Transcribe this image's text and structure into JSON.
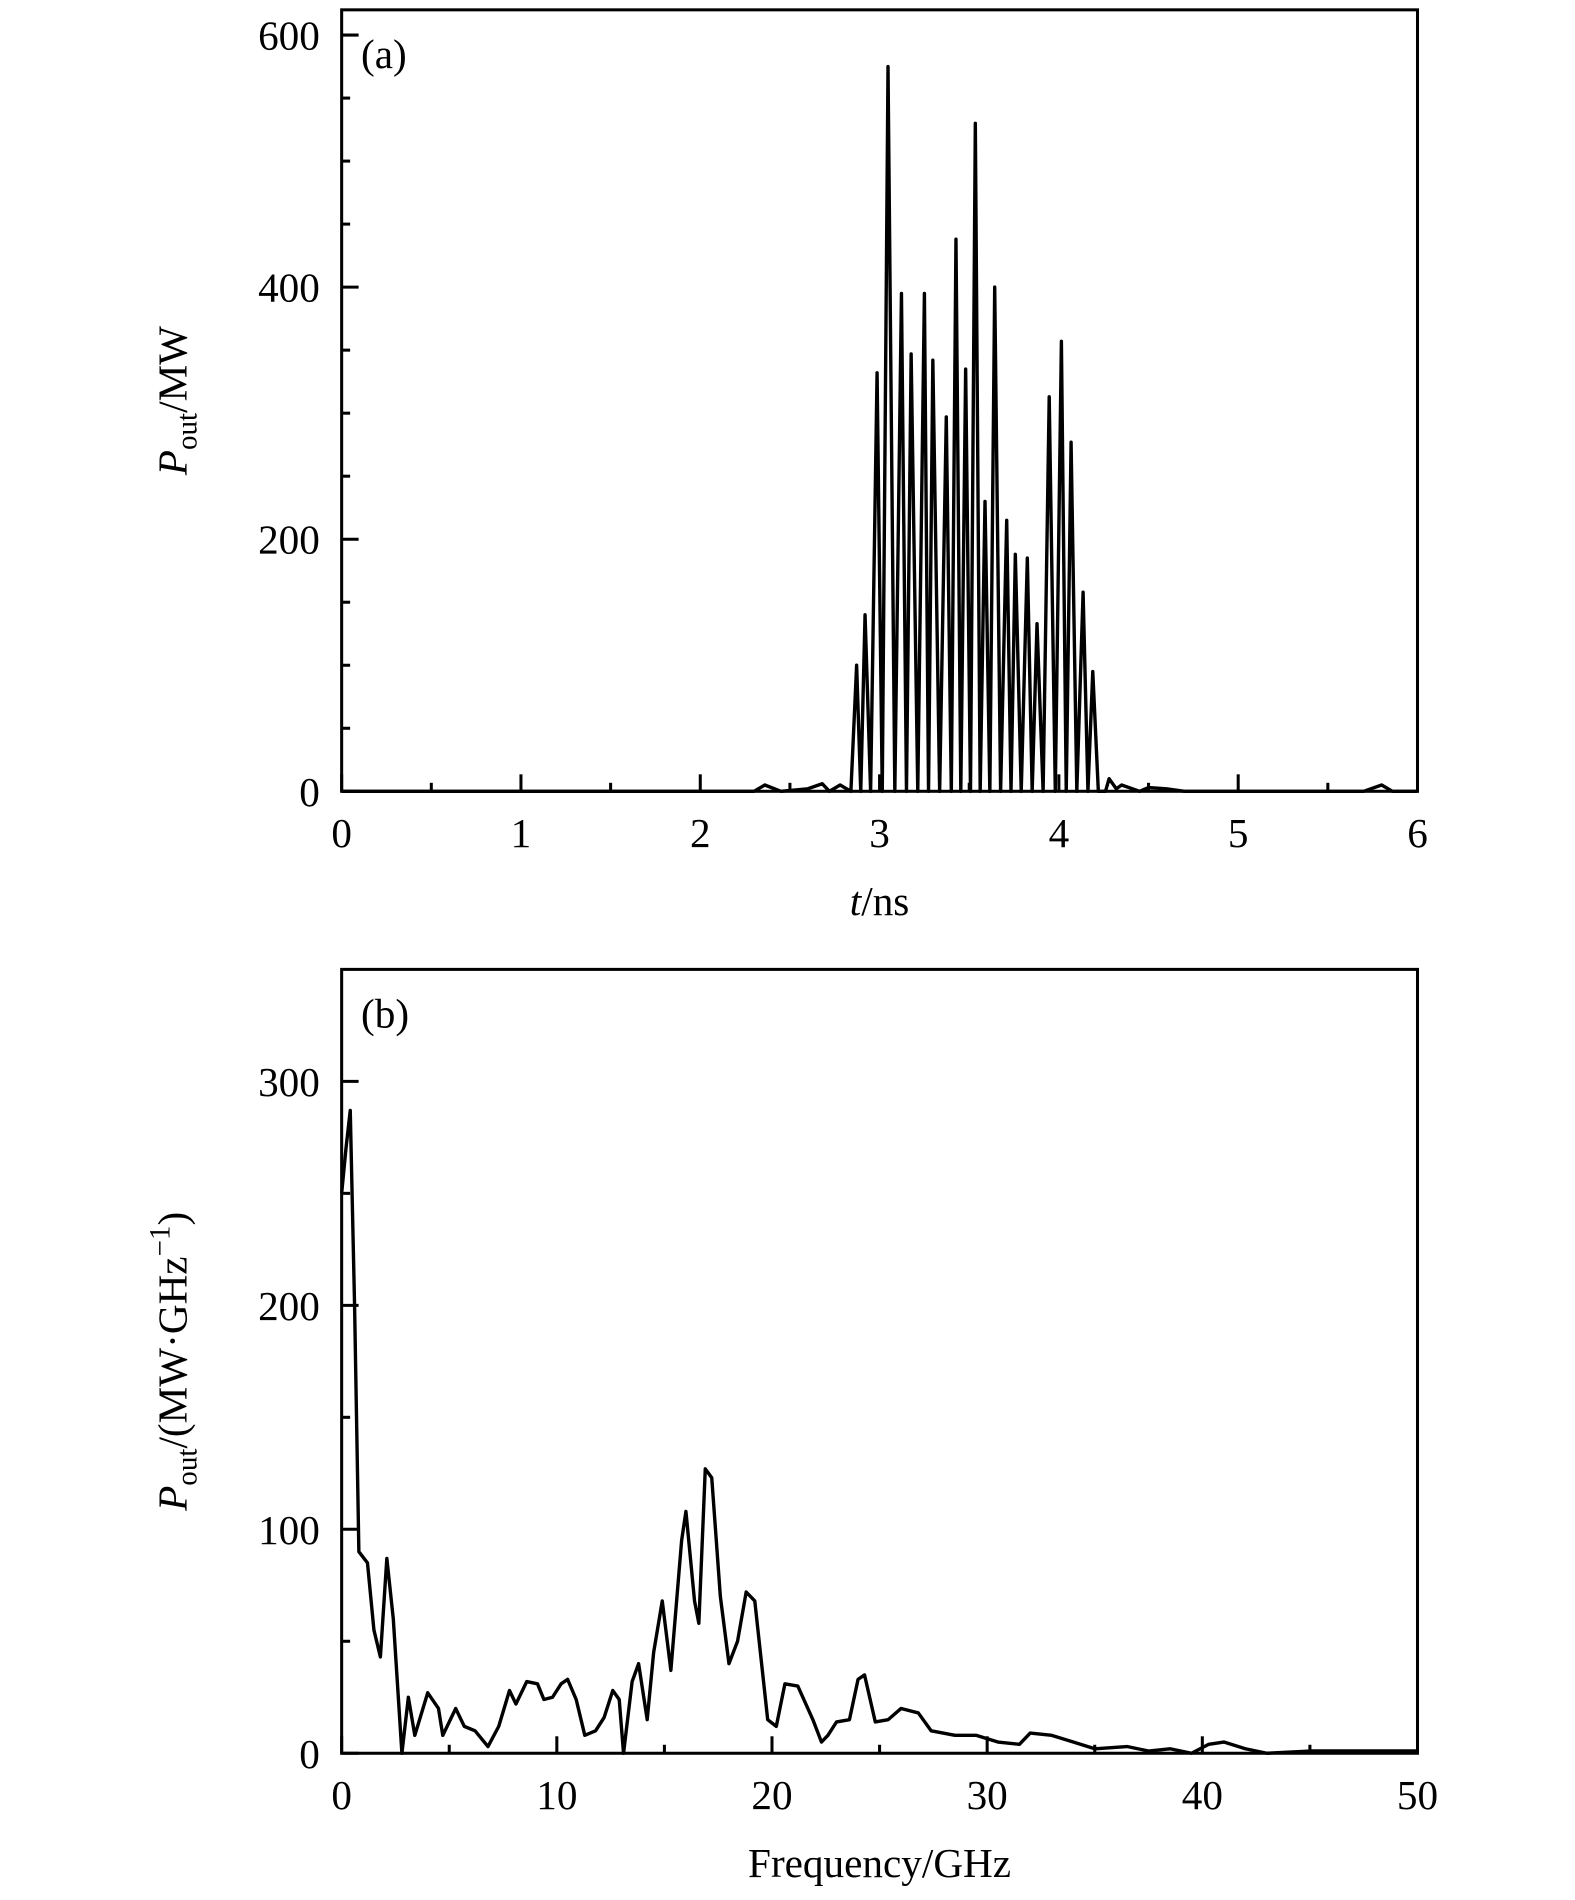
{
  "chart_data": [
    {
      "type": "line",
      "annotation": "(a)",
      "ylabel": {
        "main": "P",
        "sub": "out",
        "rest": "/MW"
      },
      "xlabel": {
        "main": "t",
        "rest": "/ns"
      },
      "xlim": [
        0,
        6
      ],
      "ylim": [
        0,
        620
      ],
      "xticks": [
        0,
        1,
        2,
        3,
        4,
        5,
        6
      ],
      "yticks": [
        0,
        200,
        400,
        600
      ],
      "xminorticks": [
        0.5,
        1.5,
        2.5,
        3.5,
        4.5,
        5.5
      ],
      "yminorticks": [
        50,
        100,
        150,
        250,
        300,
        350,
        450,
        500,
        550
      ],
      "series": [
        {
          "color": "#000000",
          "x": [
            0,
            2.2,
            2.3,
            2.36,
            2.45,
            2.6,
            2.68,
            2.72,
            2.78,
            2.84,
            2.872,
            2.895,
            2.919,
            2.95,
            2.986,
            3.015,
            3.047,
            3.085,
            3.122,
            3.15,
            3.176,
            3.213,
            3.25,
            3.273,
            3.297,
            3.335,
            3.372,
            3.4,
            3.426,
            3.453,
            3.48,
            3.507,
            3.534,
            3.561,
            3.588,
            3.615,
            3.642,
            3.675,
            3.709,
            3.733,
            3.757,
            3.79,
            3.824,
            3.851,
            3.878,
            3.912,
            3.946,
            3.98,
            4.014,
            4.041,
            4.068,
            4.1,
            4.135,
            4.162,
            4.189,
            4.22,
            4.26,
            4.28,
            4.32,
            4.35,
            4.45,
            4.5,
            4.6,
            4.7,
            5.7,
            5.8,
            5.86,
            6
          ],
          "values": [
            0,
            0,
            0,
            5,
            0,
            2,
            6,
            0,
            5,
            0,
            100,
            0,
            140,
            0,
            332,
            0,
            575,
            0,
            395,
            0,
            347,
            0,
            395,
            0,
            342,
            0,
            297,
            0,
            438,
            0,
            335,
            0,
            530,
            0,
            230,
            0,
            400,
            0,
            215,
            0,
            188,
            0,
            185,
            0,
            133,
            0,
            313,
            0,
            357,
            0,
            277,
            0,
            158,
            0,
            95,
            0,
            0,
            10,
            2,
            5,
            0,
            3,
            2,
            0,
            0,
            5,
            0,
            0
          ]
        }
      ]
    },
    {
      "type": "line",
      "annotation": "(b)",
      "ylabel": {
        "main": "P",
        "sub": "out",
        "rest": "/(MW·GHz",
        "sup": "−1",
        "end": ")"
      },
      "xlabel": {
        "rest": "Frequency/GHz"
      },
      "xlim": [
        0,
        50
      ],
      "ylim": [
        0,
        350
      ],
      "xticks": [
        0,
        10,
        20,
        30,
        40,
        50
      ],
      "yticks": [
        0,
        100,
        200,
        300
      ],
      "xminorticks": [
        5,
        15,
        25,
        35,
        45
      ],
      "yminorticks": [
        50,
        150,
        250
      ],
      "series": [
        {
          "color": "#000000",
          "x": [
            0,
            0.2,
            0.4,
            0.6,
            0.8,
            1.2,
            1.5,
            1.8,
            2.1,
            2.4,
            2.8,
            3.1,
            3.4,
            4,
            4.5,
            4.7,
            5.3,
            5.7,
            6.2,
            6.8,
            7.3,
            7.8,
            8.1,
            8.6,
            9.1,
            9.4,
            9.8,
            10.2,
            10.5,
            10.9,
            11.3,
            11.8,
            12.2,
            12.6,
            12.9,
            13.1,
            13.5,
            13.8,
            14.2,
            14.5,
            14.9,
            15.3,
            15.8,
            16,
            16.4,
            16.6,
            16.9,
            17.2,
            17.6,
            18,
            18.4,
            18.8,
            19.2,
            19.8,
            20.2,
            20.6,
            21.2,
            21.9,
            22.3,
            22.6,
            23,
            23.6,
            24,
            24.3,
            24.8,
            25.4,
            26,
            26.8,
            27.4,
            28.5,
            29.5,
            30.5,
            31.5,
            32,
            33,
            34,
            35,
            36.5,
            37.5,
            38.5,
            39.5,
            40.3,
            41,
            42,
            43,
            45,
            50
          ],
          "values": [
            250,
            270,
            287,
            200,
            90,
            85,
            55,
            43,
            87,
            60,
            0,
            25,
            8,
            27,
            20,
            8,
            20,
            12,
            10,
            3,
            12,
            28,
            22,
            32,
            31,
            24,
            25,
            31,
            33,
            24,
            8,
            10,
            16,
            28,
            24,
            0,
            32,
            40,
            15,
            45,
            68,
            37,
            95,
            108,
            68,
            58,
            127,
            123,
            70,
            40,
            50,
            72,
            68,
            15,
            12,
            31,
            30,
            15,
            5,
            8,
            14,
            15,
            33,
            35,
            14,
            15,
            20,
            18,
            10,
            8,
            8,
            5,
            4,
            9,
            8,
            5,
            2,
            3,
            1,
            2,
            0,
            4,
            5,
            2,
            0,
            1,
            1
          ]
        }
      ]
    }
  ]
}
